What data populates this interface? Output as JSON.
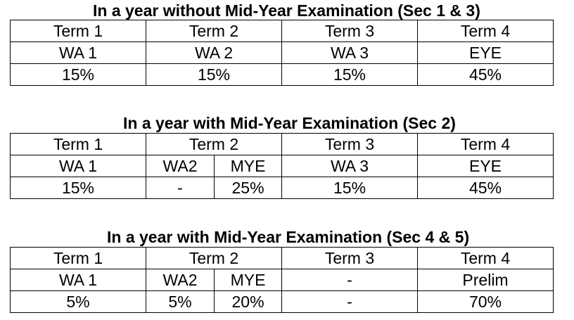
{
  "section1": {
    "caption": "In a year without Mid-Year Examination (Sec 1 & 3)",
    "header": [
      "Term 1",
      "Term 2",
      "Term 3",
      "Term 4"
    ],
    "assessment": [
      "WA 1",
      "WA 2",
      "WA 3",
      "EYE"
    ],
    "weight": [
      "15%",
      "15%",
      "15%",
      "45%"
    ]
  },
  "section2": {
    "caption": "In a year with Mid-Year Examination (Sec 2)",
    "header": [
      "Term 1",
      "Term 2",
      "Term 3",
      "Term 4"
    ],
    "assessment": [
      "WA 1",
      "WA2",
      "MYE",
      "WA 3",
      "EYE"
    ],
    "weight": [
      "15%",
      "-",
      "25%",
      "15%",
      "45%"
    ]
  },
  "section3": {
    "caption": "In a year with Mid-Year Examination (Sec 4 & 5)",
    "header": [
      "Term 1",
      "Term 2",
      "Term 3",
      "Term 4"
    ],
    "assessment": [
      "WA 1",
      "WA2",
      "MYE",
      "-",
      "Prelim"
    ],
    "weight": [
      "5%",
      "5%",
      "20%",
      "-",
      "70%"
    ]
  }
}
